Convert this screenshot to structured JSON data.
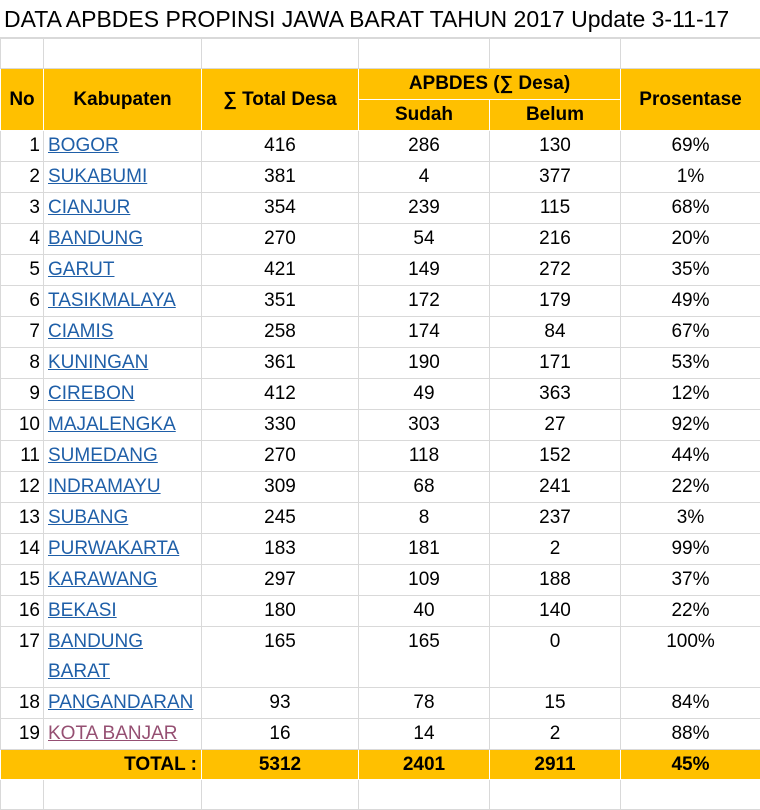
{
  "title": "DATA APBDES PROPINSI JAWA BARAT TAHUN 2017 Update 3-11-17",
  "table": {
    "header": {
      "no": "No",
      "kabupaten": "Kabupaten",
      "total": "∑ Total Desa",
      "group": "APBDES (∑ Desa)",
      "sudah": "Sudah",
      "belum": "Belum",
      "prosentase": "Prosentase"
    },
    "rows": [
      [
        1,
        "BOGOR",
        416,
        286,
        130,
        "69%"
      ],
      [
        2,
        "SUKABUMI",
        381,
        4,
        377,
        "1%"
      ],
      [
        3,
        "CIANJUR",
        354,
        239,
        115,
        "68%"
      ],
      [
        4,
        "BANDUNG",
        270,
        54,
        216,
        "20%"
      ],
      [
        5,
        "GARUT",
        421,
        149,
        272,
        "35%"
      ],
      [
        6,
        "TASIKMALAYA",
        351,
        172,
        179,
        "49%"
      ],
      [
        7,
        "CIAMIS",
        258,
        174,
        84,
        "67%"
      ],
      [
        8,
        "KUNINGAN",
        361,
        190,
        171,
        "53%"
      ],
      [
        9,
        "CIREBON",
        412,
        49,
        363,
        "12%"
      ],
      [
        10,
        "MAJALENGKA",
        330,
        303,
        27,
        "92%"
      ],
      [
        11,
        "SUMEDANG",
        270,
        118,
        152,
        "44%"
      ],
      [
        12,
        "INDRAMAYU",
        309,
        68,
        241,
        "22%"
      ],
      [
        13,
        "SUBANG",
        245,
        8,
        237,
        "3%"
      ],
      [
        14,
        "PURWAKARTA",
        183,
        181,
        2,
        "99%"
      ],
      [
        15,
        "KARAWANG",
        297,
        109,
        188,
        "37%"
      ],
      [
        16,
        "BEKASI",
        180,
        40,
        140,
        "22%"
      ],
      [
        17,
        "BANDUNG BARAT",
        165,
        165,
        0,
        "100%"
      ],
      [
        18,
        "PANGANDARAN",
        93,
        78,
        15,
        "84%"
      ],
      [
        19,
        "KOTA BANJAR",
        16,
        14,
        2,
        "88%"
      ]
    ],
    "total": {
      "label": "TOTAL :",
      "values": [
        5312,
        2401,
        2911,
        "45%"
      ]
    }
  }
}
